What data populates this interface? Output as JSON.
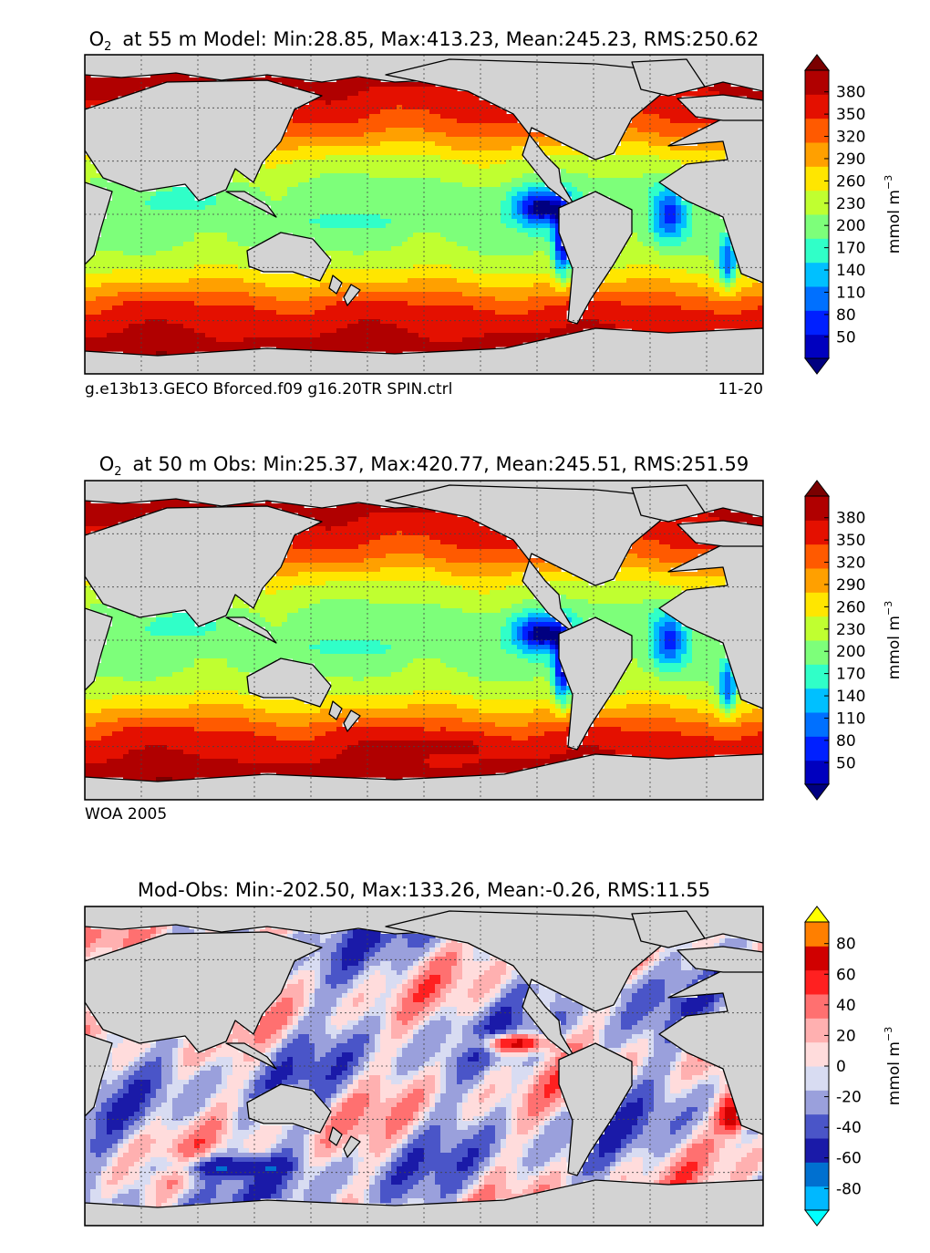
{
  "chart_data": [
    {
      "type": "heatmap",
      "title": {
        "var": "O",
        "sub": "2",
        "rest": "at 55 m Model: Min:28.85, Max:413.23, Mean:245.23, RMS:250.62"
      },
      "caption_left": "g.e13b13.GECO Bforced.f09 g16.20TR SPIN.ctrl",
      "caption_right": "11-20",
      "colorbar": {
        "label": "mmol m",
        "label_exp": "−3",
        "ticks": [
          "380",
          "350",
          "320",
          "290",
          "260",
          "230",
          "200",
          "170",
          "140",
          "110",
          "80",
          "50"
        ]
      },
      "bins": [
        {
          "to": 50,
          "color": "#000080"
        },
        {
          "to": 65,
          "color": "#0000bf"
        },
        {
          "to": 95,
          "color": "#0020ff"
        },
        {
          "to": 125,
          "color": "#0070ff"
        },
        {
          "to": 155,
          "color": "#00c0ff"
        },
        {
          "to": 185,
          "color": "#30ffc8"
        },
        {
          "to": 215,
          "color": "#7dff7a"
        },
        {
          "to": 245,
          "color": "#c0ff30"
        },
        {
          "to": 275,
          "color": "#ffe600"
        },
        {
          "to": 305,
          "color": "#ffa000"
        },
        {
          "to": 335,
          "color": "#ff5a00"
        },
        {
          "to": 365,
          "color": "#e41000"
        },
        {
          "to": 400,
          "color": "#b00000"
        },
        {
          "to": 999,
          "color": "#7a0000"
        }
      ]
    },
    {
      "type": "heatmap",
      "title": {
        "var": "O",
        "sub": "2",
        "rest": "at 50 m Obs: Min:25.37, Max:420.77, Mean:245.51, RMS:251.59"
      },
      "caption_left": "WOA 2005",
      "caption_right": "",
      "colorbar": {
        "label": "mmol m",
        "label_exp": "−3",
        "ticks": [
          "380",
          "350",
          "320",
          "290",
          "260",
          "230",
          "200",
          "170",
          "140",
          "110",
          "80",
          "50"
        ]
      },
      "bins": [
        {
          "to": 50,
          "color": "#000080"
        },
        {
          "to": 65,
          "color": "#0000bf"
        },
        {
          "to": 95,
          "color": "#0020ff"
        },
        {
          "to": 125,
          "color": "#0070ff"
        },
        {
          "to": 155,
          "color": "#00c0ff"
        },
        {
          "to": 185,
          "color": "#30ffc8"
        },
        {
          "to": 215,
          "color": "#7dff7a"
        },
        {
          "to": 245,
          "color": "#c0ff30"
        },
        {
          "to": 275,
          "color": "#ffe600"
        },
        {
          "to": 305,
          "color": "#ffa000"
        },
        {
          "to": 335,
          "color": "#ff5a00"
        },
        {
          "to": 365,
          "color": "#e41000"
        },
        {
          "to": 400,
          "color": "#b00000"
        },
        {
          "to": 999,
          "color": "#7a0000"
        }
      ]
    },
    {
      "type": "heatmap",
      "title": {
        "var": "",
        "sub": "",
        "rest": "Mod-Obs: Min:-202.50, Max:133.26, Mean:-0.26, RMS:11.55"
      },
      "caption_left": "",
      "caption_right": "",
      "colorbar": {
        "label": "mmol m",
        "label_exp": "−3",
        "ticks": [
          "80",
          "60",
          "40",
          "20",
          "0",
          "-20",
          "-40",
          "-60",
          "-80"
        ]
      },
      "bins": [
        {
          "to": -70,
          "color": "#00ffff"
        },
        {
          "to": -55,
          "color": "#00b8ff"
        },
        {
          "to": -40,
          "color": "#0070d0"
        },
        {
          "to": -25,
          "color": "#1a1aa8"
        },
        {
          "to": -15,
          "color": "#4a55c8"
        },
        {
          "to": -5,
          "color": "#9aa0dc"
        },
        {
          "to": 0,
          "color": "#d8dcf2"
        },
        {
          "to": 7,
          "color": "#ffdcdc"
        },
        {
          "to": 15,
          "color": "#ffb0b0"
        },
        {
          "to": 25,
          "color": "#ff7070"
        },
        {
          "to": 40,
          "color": "#ff2020"
        },
        {
          "to": 55,
          "color": "#d00000"
        },
        {
          "to": 70,
          "color": "#ff7f00"
        },
        {
          "to": 999,
          "color": "#ffff00"
        }
      ]
    }
  ]
}
